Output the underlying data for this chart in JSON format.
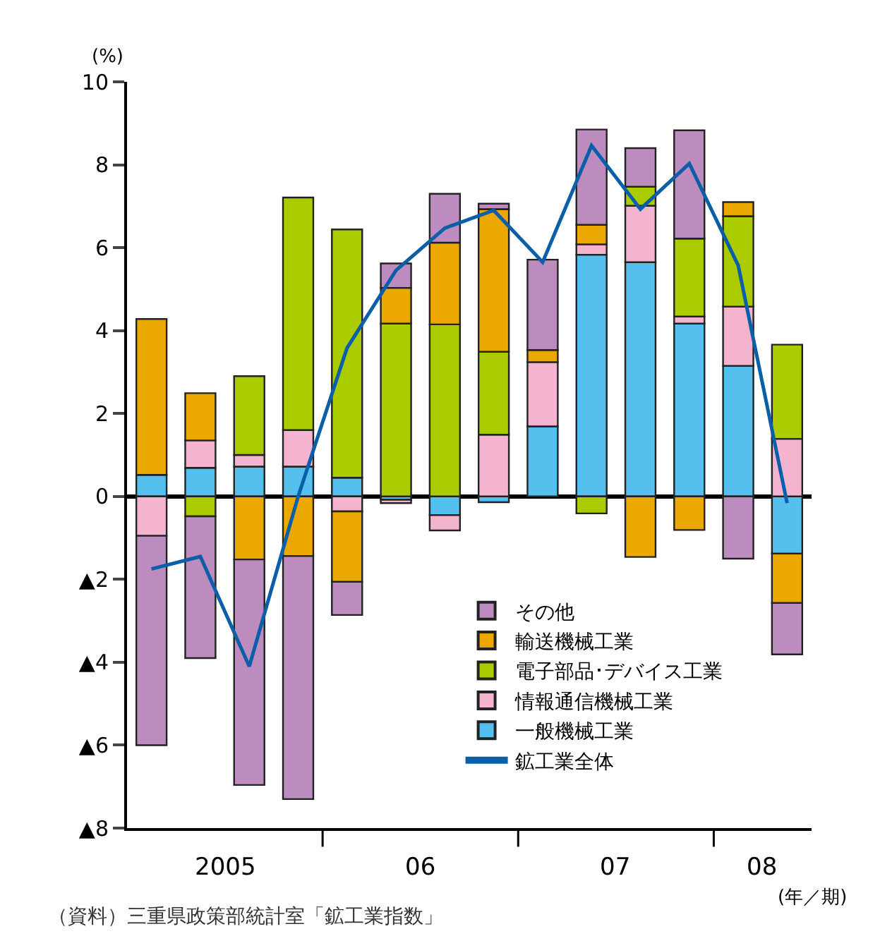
{
  "chart_data": {
    "type": "bar",
    "stacked": true,
    "ylabel": "(%)",
    "categories": [
      null,
      null,
      null,
      null,
      null,
      null,
      null,
      null,
      null,
      null,
      null,
      null,
      null,
      null
    ],
    "series": [
      {
        "name": "一般機械工業",
        "color": "#55c0ee",
        "values": [
          0.52,
          0.69,
          0.72,
          0.72,
          0.45,
          -0.08,
          -0.45,
          -0.14,
          1.69,
          5.83,
          5.65,
          4.17,
          3.15,
          -1.38
        ]
      },
      {
        "name": "情報通信機械工業",
        "color": "#f4b3cf",
        "values": [
          -0.95,
          0.66,
          0.28,
          0.88,
          -0.36,
          -0.08,
          -0.37,
          1.49,
          1.55,
          0.25,
          1.36,
          0.17,
          1.43,
          1.39
        ]
      },
      {
        "name": "電子部品･デバイス工業",
        "color": "#aacc00",
        "values": [
          null,
          -0.48,
          1.9,
          5.61,
          5.99,
          4.17,
          4.15,
          2.0,
          null,
          -0.41,
          0.46,
          1.88,
          2.18,
          2.27
        ]
      },
      {
        "name": "輸送機械工業",
        "color": "#eba800",
        "values": [
          3.76,
          1.14,
          -1.52,
          -1.44,
          -1.7,
          0.86,
          1.97,
          3.44,
          0.29,
          0.47,
          -1.46,
          -0.81,
          0.34,
          -1.19
        ]
      },
      {
        "name": "その他",
        "color": "#bd8cbf",
        "values": [
          -5.05,
          -3.42,
          -5.44,
          -5.86,
          -0.8,
          0.59,
          1.18,
          0.13,
          2.18,
          2.3,
          0.93,
          2.61,
          -1.5,
          -1.24
        ]
      },
      {
        "name": "鉱工業全体",
        "type": "line",
        "color": "#0a5fa8",
        "values": [
          -1.75,
          -1.45,
          -4.1,
          0,
          3.58,
          5.45,
          6.47,
          6.9,
          5.65,
          8.46,
          6.93,
          8.03,
          5.57,
          -0.16
        ]
      }
    ],
    "ylim": [
      -8,
      10
    ],
    "yticks": [
      {
        "value": -8,
        "label": "▲8"
      },
      {
        "value": -6,
        "label": "▲6"
      },
      {
        "value": -4,
        "label": "▲4"
      },
      {
        "value": -2,
        "label": "▲2"
      },
      0,
      2,
      4,
      6,
      8,
      10
    ],
    "legend": "bottom right",
    "annotations": [
      "2005",
      "06",
      "07",
      "08",
      "(年／期)",
      "（資料）三重県政策部統計室「鉱工業指数」"
    ]
  }
}
